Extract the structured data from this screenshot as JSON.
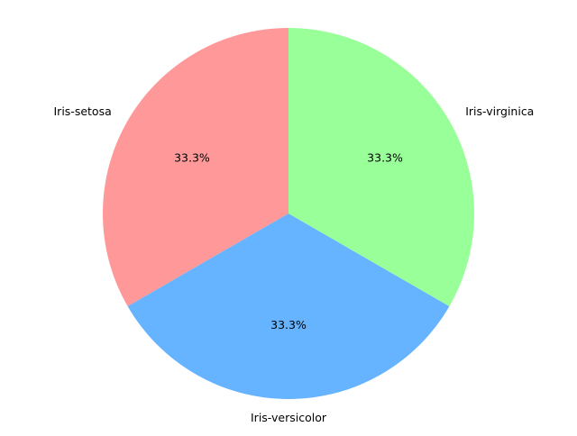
{
  "chart_data": {
    "type": "pie",
    "title": "",
    "categories": [
      "Iris-setosa",
      "Iris-versicolor",
      "Iris-virginica"
    ],
    "values": [
      33.3,
      33.3,
      33.3
    ],
    "percent_labels": [
      "33.3%",
      "33.3%",
      "33.3%"
    ],
    "colors": [
      "#ff9999",
      "#66b3ff",
      "#99ff99"
    ],
    "start_angle_degrees": 90,
    "direction": "counterclockwise",
    "legend": "none"
  }
}
